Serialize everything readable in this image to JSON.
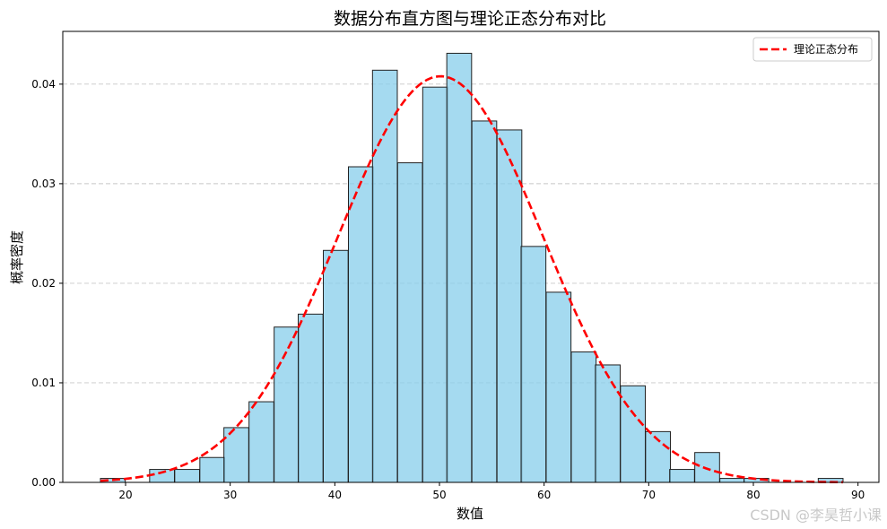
{
  "chart_data": {
    "type": "bar",
    "title": "数据分布直方图与理论正态分布对比",
    "xlabel": "数值",
    "ylabel": "概率密度",
    "xlim": [
      14,
      92
    ],
    "ylim": [
      0,
      0.0453
    ],
    "xticks": [
      20,
      30,
      40,
      50,
      60,
      70,
      80,
      90
    ],
    "yticks": [
      0.0,
      0.01,
      0.02,
      0.03,
      0.04
    ],
    "xtick_labels": [
      "20",
      "30",
      "40",
      "50",
      "60",
      "70",
      "80",
      "90"
    ],
    "ytick_labels": [
      "0.00",
      "0.01",
      "0.02",
      "0.03",
      "0.04"
    ],
    "grid": "y-dashed",
    "legend_position": "upper right",
    "bin_width": 2.37,
    "bins_start": [
      17.6,
      22.3,
      24.7,
      27.1,
      29.4,
      31.8,
      34.2,
      36.5,
      38.9,
      41.3,
      43.6,
      46.0,
      48.4,
      50.7,
      53.1,
      55.5,
      57.8,
      60.2,
      62.6,
      64.9,
      67.3,
      69.7,
      72.0,
      74.4,
      76.8,
      79.1,
      86.2
    ],
    "values": [
      0.0004,
      0.0013,
      0.0013,
      0.0025,
      0.0055,
      0.0081,
      0.0156,
      0.0169,
      0.0233,
      0.0317,
      0.0414,
      0.0321,
      0.0397,
      0.0431,
      0.0363,
      0.0354,
      0.0237,
      0.0191,
      0.0131,
      0.0118,
      0.0097,
      0.0051,
      0.0013,
      0.003,
      0.0004,
      0.0004,
      0.0004
    ],
    "series": [
      {
        "name": "理论正态分布",
        "type": "line",
        "style": "dashed",
        "color": "#ff0000",
        "mean": 50.1,
        "std": 9.78
      }
    ],
    "colors": {
      "bar_fill": "#87ceeb",
      "bar_edge": "#222222",
      "curve": "#ff0000",
      "grid": "#c8c8c8"
    }
  },
  "watermark": "CSDN @李昊哲小课"
}
